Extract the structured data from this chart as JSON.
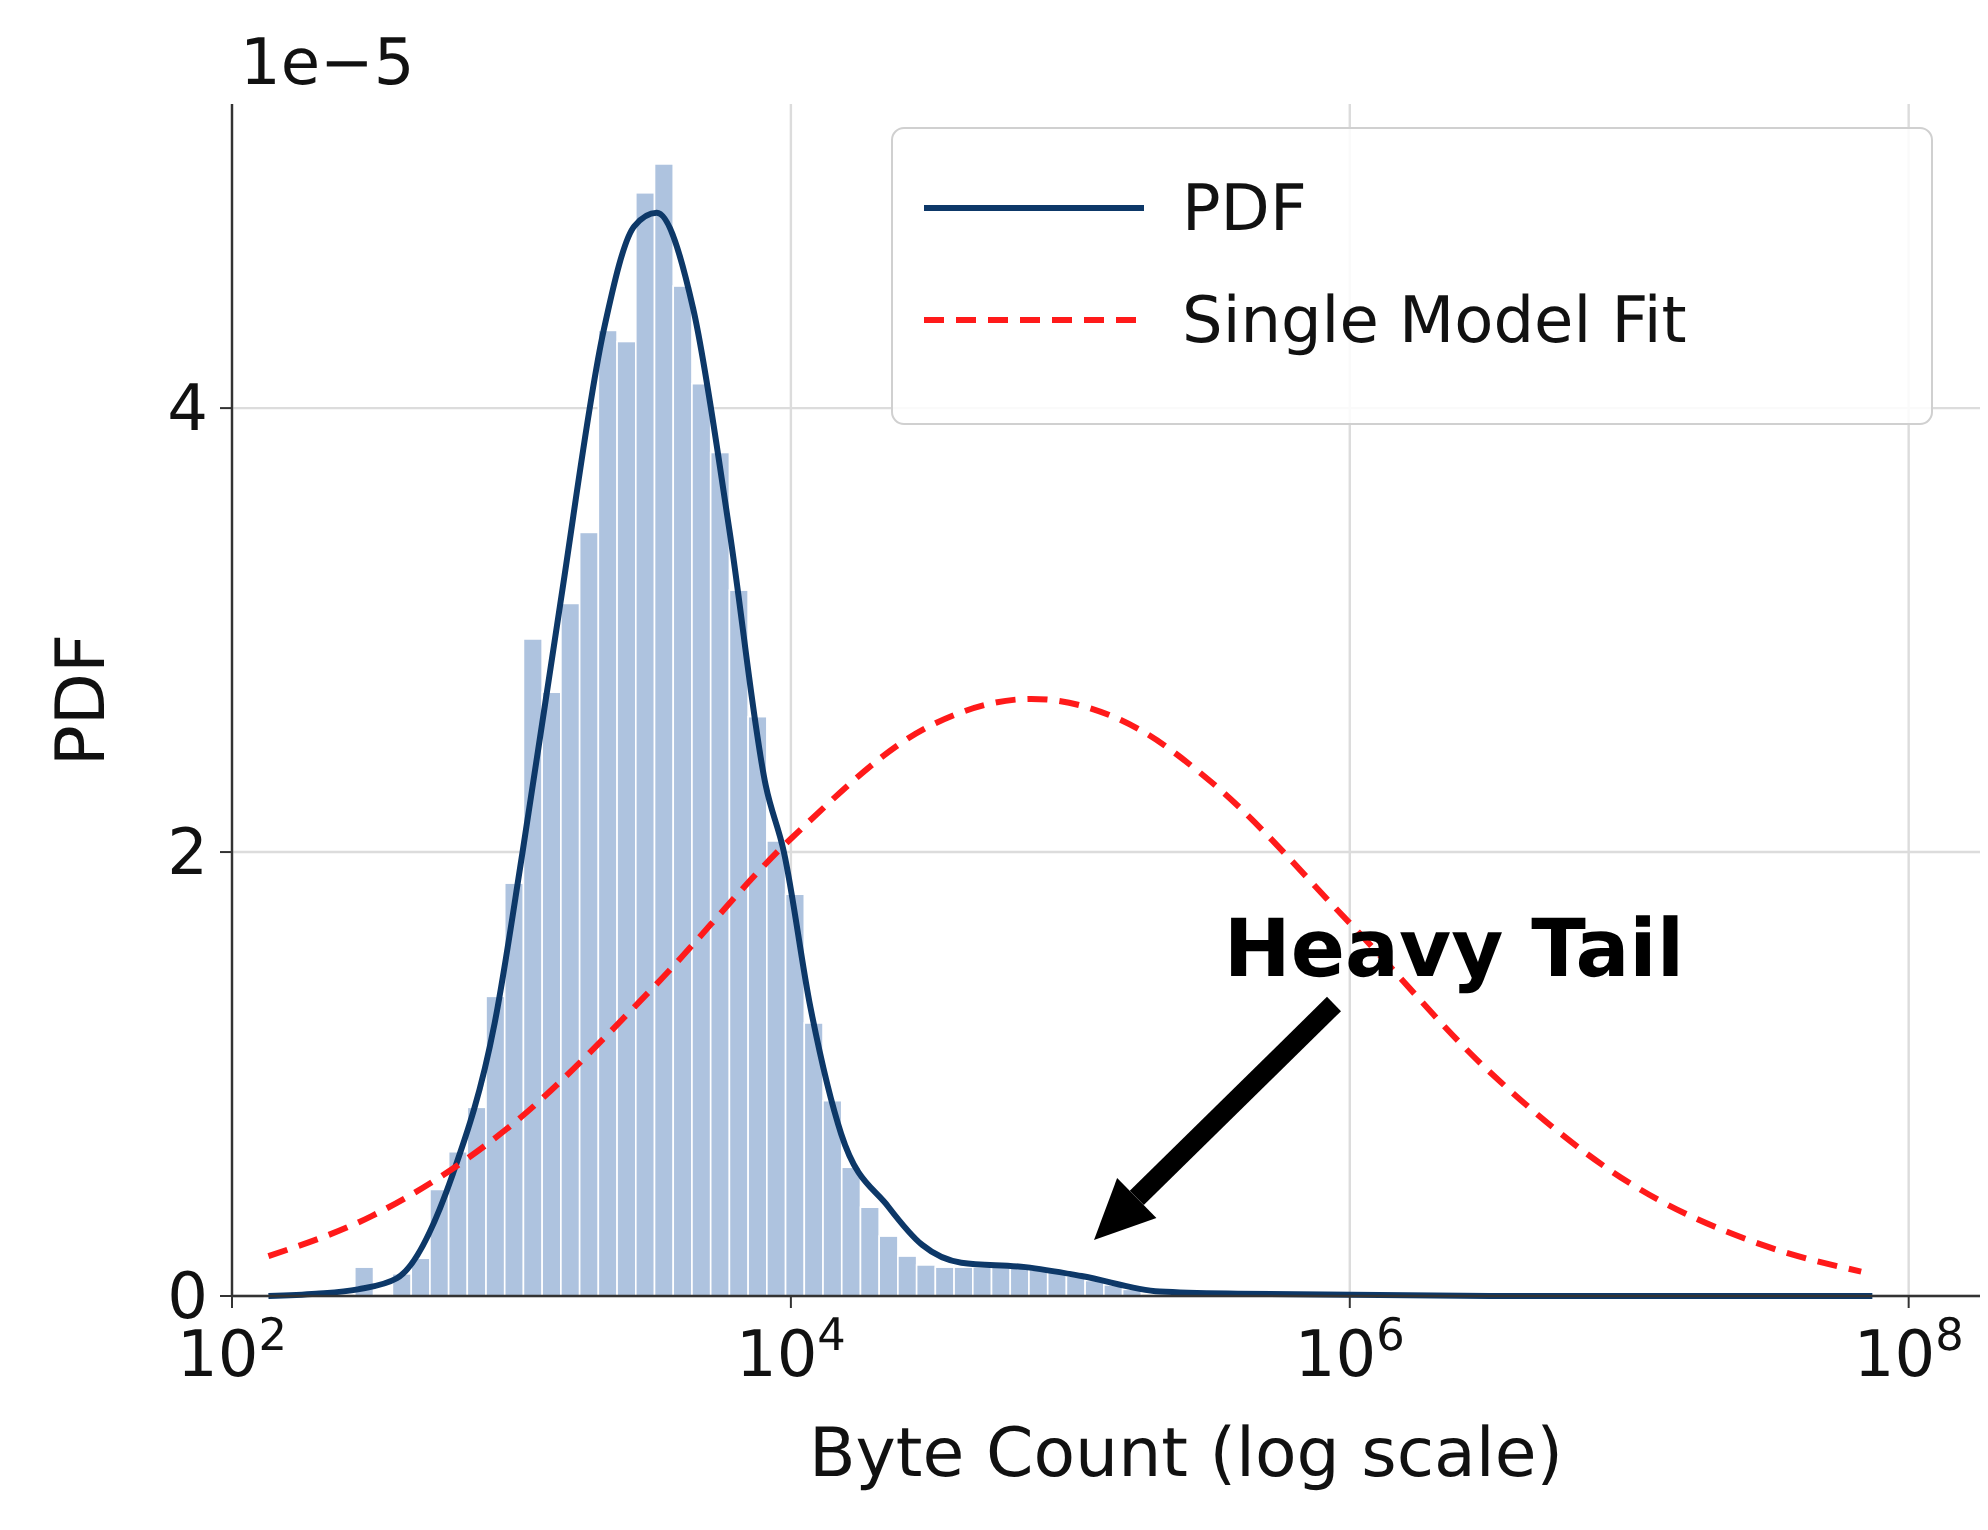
{
  "chart_data": {
    "type": "histogram",
    "xlabel": "Byte Count (log scale)",
    "ylabel": "PDF",
    "bins": [
      275,
      321,
      375,
      438,
      511,
      596,
      695,
      811,
      946,
      1104,
      1288,
      1503,
      1754,
      2046,
      2388,
      2786,
      3251,
      3793,
      4426,
      5164,
      6026,
      7031,
      8204,
      9572,
      11169,
      13032,
      15205,
      17742,
      20701,
      24155,
      28184,
      32885,
      38371,
      44771,
      52240,
      60954,
      71121,
      82985,
      96828,
      112980,
      131826,
      153815,
      179473
    ],
    "values": [
      0.13,
      0,
      0.1,
      0.17,
      0.48,
      0.65,
      0.85,
      1.35,
      1.86,
      2.96,
      2.72,
      3.12,
      3.44,
      4.35,
      4.3,
      4.97,
      5.1,
      4.55,
      4.11,
      3.8,
      3.18,
      2.61,
      2.05,
      1.81,
      1.23,
      0.88,
      0.58,
      0.4,
      0.27,
      0.18,
      0.14,
      0.13,
      0.13,
      0.13,
      0.13,
      0.13,
      0.12,
      0.11,
      0.09,
      0.07,
      0.05,
      0.03
    ],
    "color": "#aec3df",
    "series": [
      {
        "type": "line",
        "name": "PDF",
        "color": "#0d3868",
        "line_style": "solid",
        "x": [
          135,
          200,
          282,
          389,
          617,
          871,
          1096,
          1496,
          2138,
          2754,
          3311,
          4467,
          6026,
          8128,
          9441,
          11749,
          15136,
          22387,
          29512,
          40738,
          69183,
          109648,
          208930,
          398107,
          3162278,
          74131024
        ],
        "values": [
          0,
          0.01,
          0.03,
          0.08,
          0.55,
          1.23,
          2.0,
          3.12,
          4.35,
          4.82,
          4.88,
          4.45,
          3.45,
          2.3,
          2.0,
          1.3,
          0.73,
          0.4,
          0.23,
          0.15,
          0.13,
          0.09,
          0.02,
          0.01,
          0,
          0
        ]
      },
      {
        "type": "line",
        "name": "Single Model Fit",
        "color": "#ff1a1a",
        "line_style": "dashed",
        "x": [
          135,
          316,
          1000,
          3162,
          10000,
          31623,
          72444,
          177828,
          316228,
          1000000,
          3162278,
          10000000,
          31622777,
          67608298
        ],
        "values": [
          0.18,
          0.36,
          0.77,
          1.38,
          2.06,
          2.57,
          2.69,
          2.55,
          2.32,
          1.68,
          1.01,
          0.51,
          0.22,
          0.11
        ]
      }
    ],
    "xlim": [
      100,
      180000000
    ],
    "ylim": [
      0,
      5.37
    ],
    "xticks": [
      {
        "value": 100,
        "label": "10$^{2}$"
      },
      {
        "value": 10000,
        "label": "10$^{4}$"
      },
      {
        "value": 1000000,
        "label": "10$^{6}$"
      },
      {
        "value": 100000000,
        "label": "10$^{8}$"
      }
    ],
    "yticks": [
      0,
      2,
      4
    ],
    "log": "x",
    "grid": true,
    "legend": "top right",
    "annotations": [
      "1e−5",
      "Heavy Tail"
    ]
  }
}
